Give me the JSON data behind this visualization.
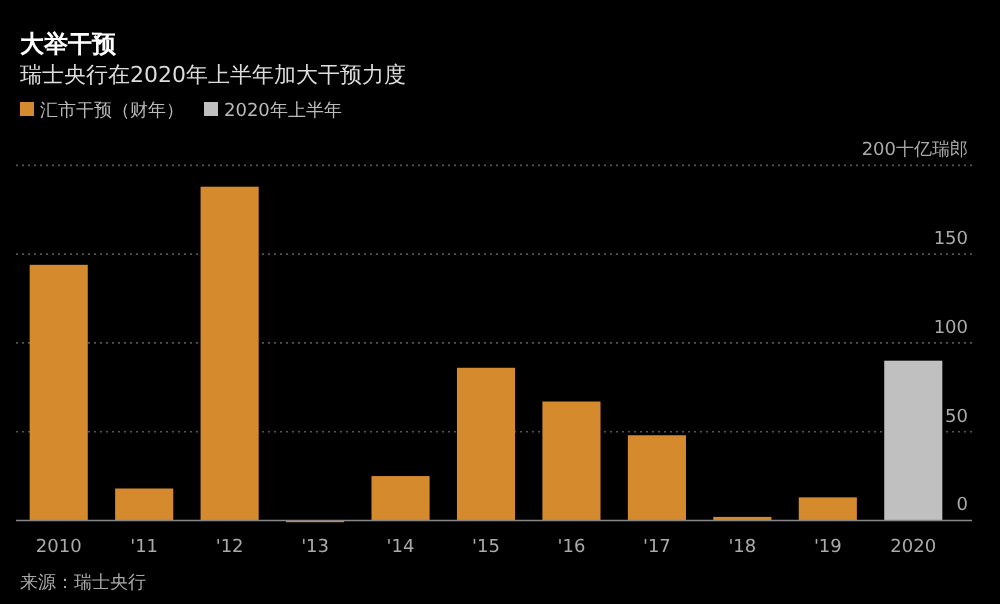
{
  "chart_data": {
    "type": "bar",
    "title": "大举干预",
    "subtitle": "瑞士央行在2020年上半年加大干预力度",
    "categories": [
      "2010",
      "'11",
      "'12",
      "'13",
      "'14",
      "'15",
      "'16",
      "'17",
      "'18",
      "'19",
      "2020"
    ],
    "series": [
      {
        "name": "汇市干预（财年）",
        "color": "#d68a2e",
        "values": [
          144,
          18,
          188,
          -1,
          25,
          86,
          67,
          48,
          2,
          13,
          null
        ]
      },
      {
        "name": "2020年上半年",
        "color": "#c0c0c0",
        "values": [
          null,
          null,
          null,
          null,
          null,
          null,
          null,
          null,
          null,
          null,
          90
        ]
      }
    ],
    "ylim": [
      -2,
      200
    ],
    "yticks": [
      0,
      50,
      100,
      150,
      {
        "value": 200,
        "label": "200十亿瑞郎"
      }
    ],
    "grid": "y",
    "legend": "top left",
    "annotations": [
      "来源：瑞士央行"
    ]
  }
}
